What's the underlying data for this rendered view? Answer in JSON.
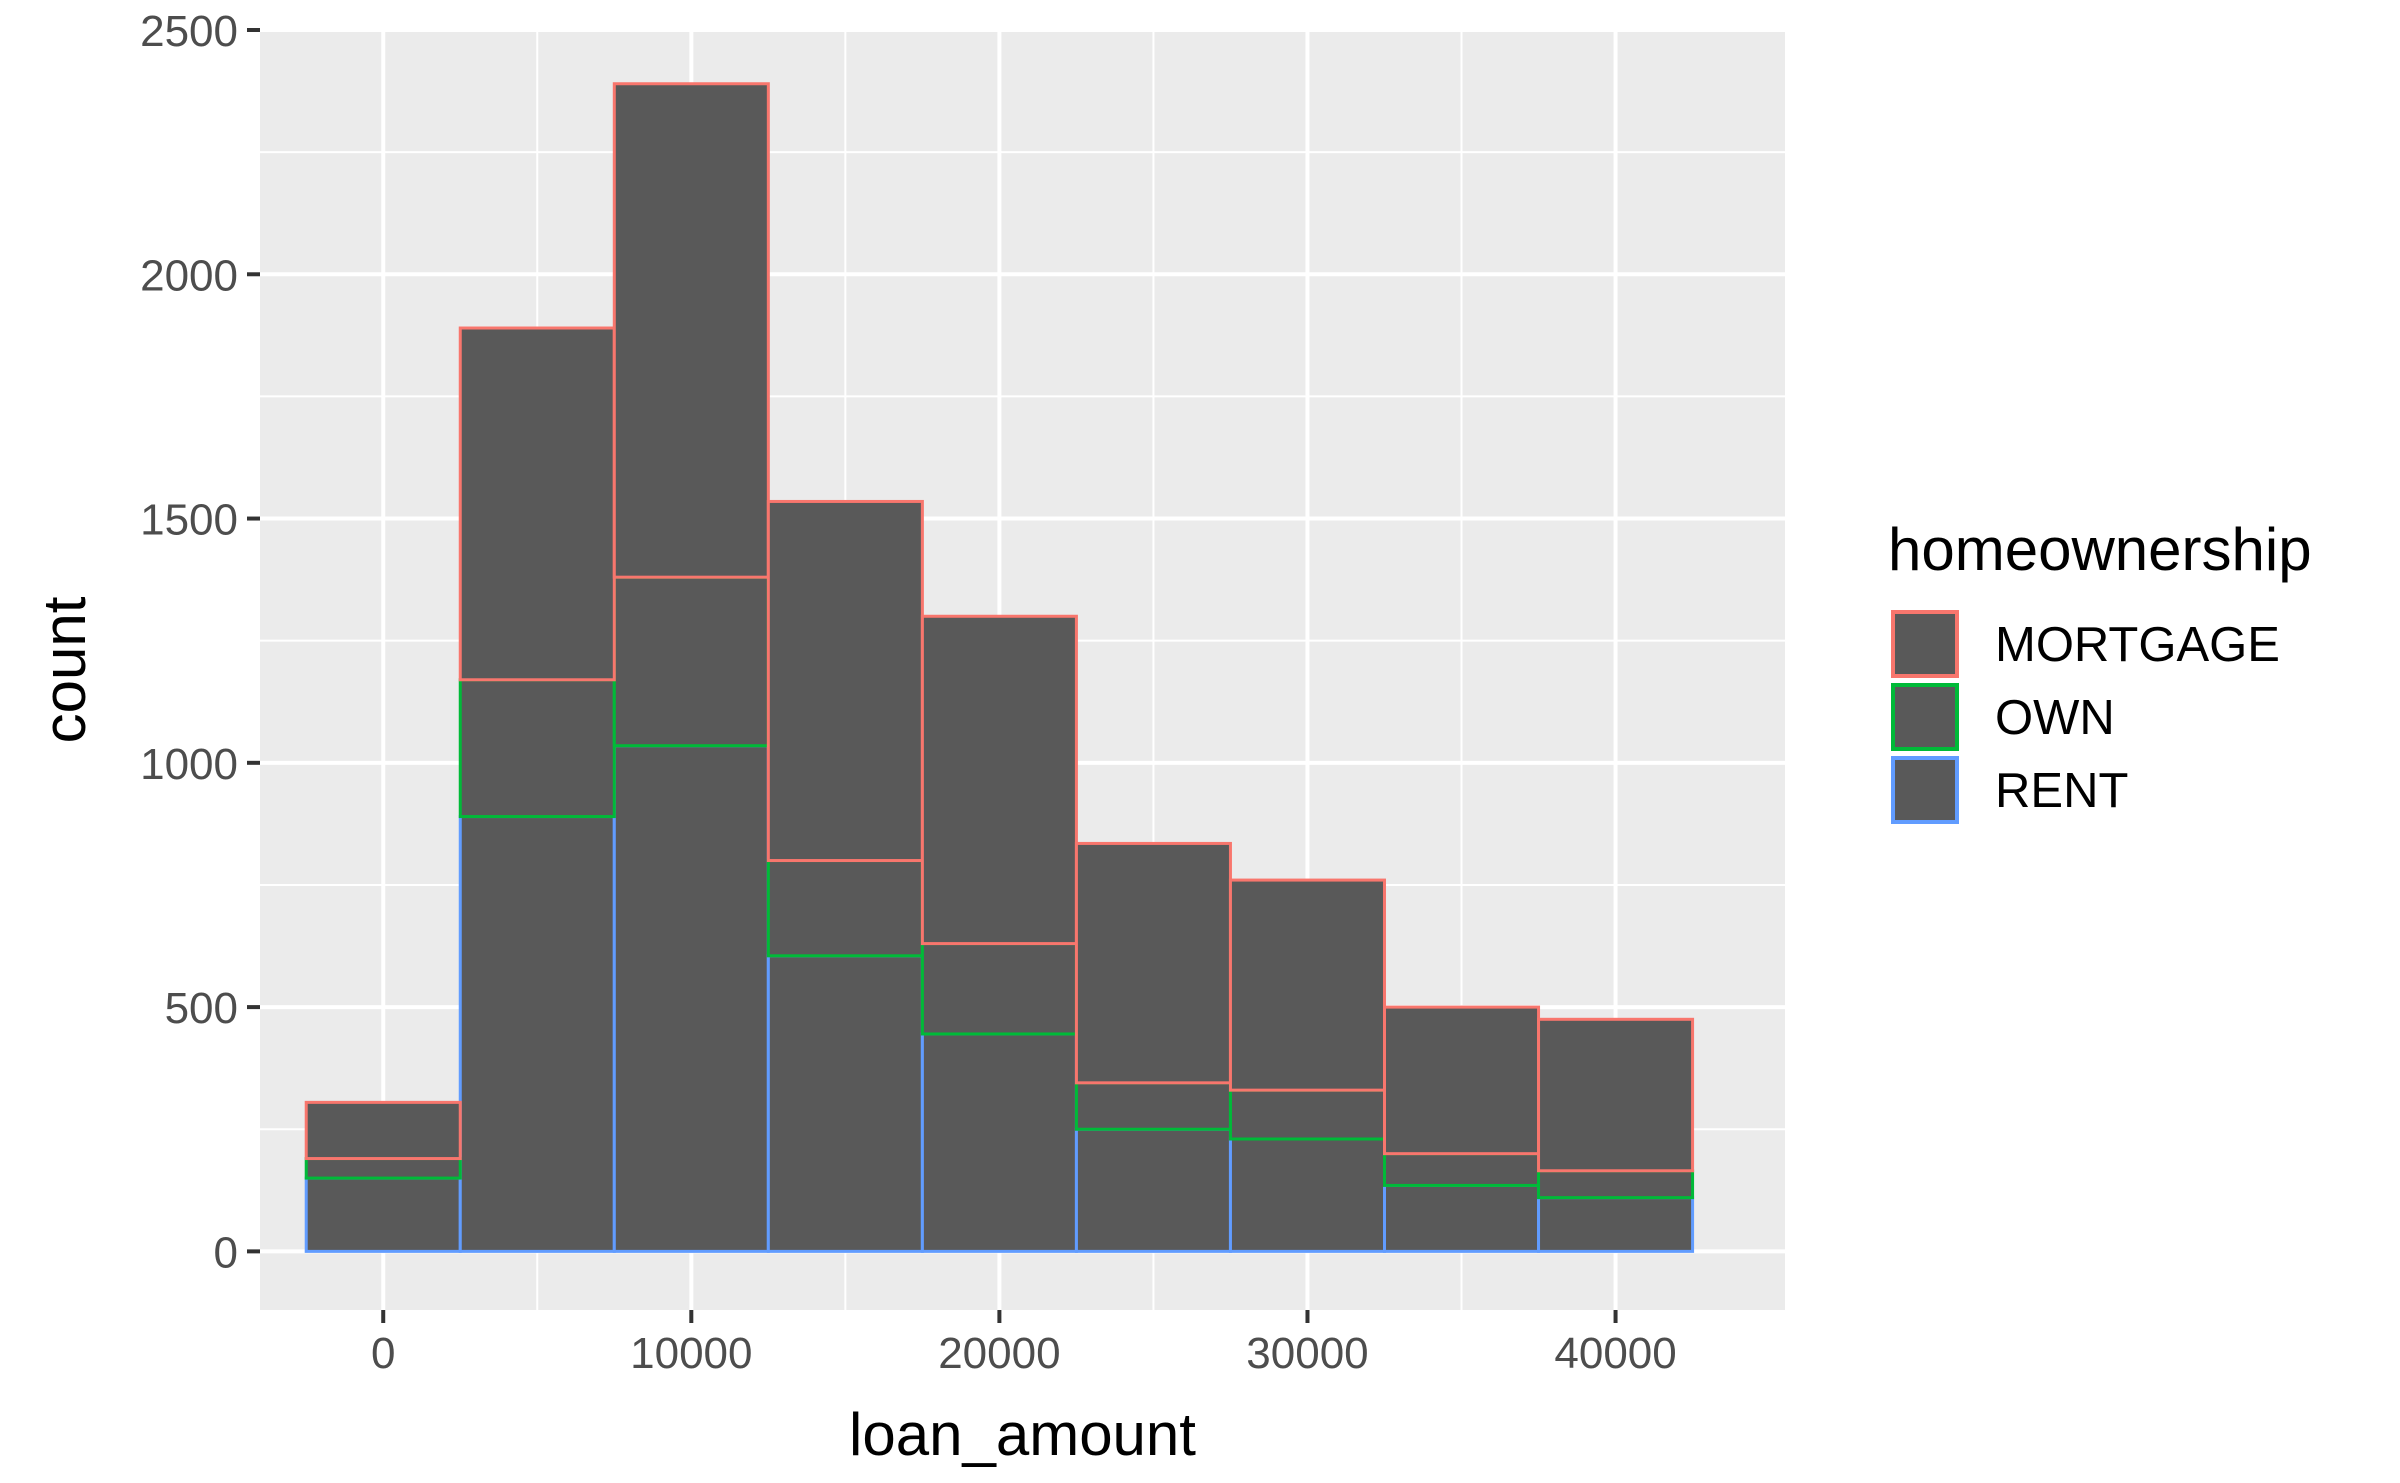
{
  "chart_data": {
    "type": "bar",
    "stacked": true,
    "xlabel": "loan_amount",
    "ylabel": "count",
    "xlim": [
      -4000,
      45500
    ],
    "ylim": [
      -120,
      2500
    ],
    "x_ticks": [
      0,
      10000,
      20000,
      30000,
      40000
    ],
    "x_tick_labels": [
      "0",
      "10000",
      "20000",
      "30000",
      "40000"
    ],
    "y_ticks": [
      0,
      500,
      1000,
      1500,
      2000,
      2500
    ],
    "y_tick_labels": [
      "0",
      "500",
      "1000",
      "1500",
      "2000",
      "2500"
    ],
    "bin_edges": [
      -2500,
      2500,
      7500,
      12500,
      17500,
      22500,
      27500,
      32500,
      37500,
      42500
    ],
    "bin_centers": [
      0,
      5000,
      10000,
      15000,
      20000,
      25000,
      30000,
      35000,
      40000
    ],
    "series": [
      {
        "name": "RENT",
        "color": "#619CFF",
        "values": [
          150,
          890,
          1035,
          605,
          445,
          250,
          230,
          135,
          110
        ]
      },
      {
        "name": "OWN",
        "color": "#00BA38",
        "values": [
          40,
          280,
          345,
          195,
          185,
          95,
          100,
          65,
          55
        ]
      },
      {
        "name": "MORTGAGE",
        "color": "#F8766D",
        "values": [
          115,
          720,
          1010,
          735,
          670,
          490,
          430,
          300,
          310
        ]
      }
    ],
    "bar_fill": "#595959",
    "panel_background": "#EBEBEB",
    "grid": true,
    "legend": {
      "title": "homeownership",
      "position": "right",
      "entries": [
        "MORTGAGE",
        "OWN",
        "RENT"
      ]
    }
  }
}
